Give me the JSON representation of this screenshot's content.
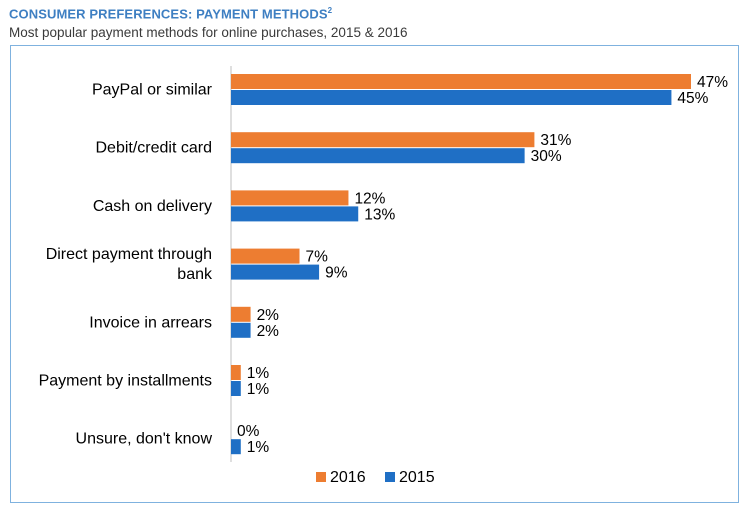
{
  "header": {
    "title": "CONSUMER PREFERENCES: PAYMENT METHODS",
    "title_sup": "2",
    "subtitle": "Most popular payment methods for online purchases, 2015 & 2016"
  },
  "colors": {
    "s2016": "#ed7d31",
    "s2015": "#1f6fc5"
  },
  "chart_data": {
    "type": "bar",
    "orientation": "horizontal",
    "title": "CONSUMER PREFERENCES: PAYMENT METHODS",
    "subtitle": "Most popular payment methods for online purchases, 2015 & 2016",
    "categories": [
      [
        "PayPal or similar"
      ],
      [
        "Debit/credit card"
      ],
      [
        "Cash on delivery"
      ],
      [
        "Direct payment through",
        "bank"
      ],
      [
        "Invoice in arrears"
      ],
      [
        "Payment by installments"
      ],
      [
        "Unsure, don't know"
      ]
    ],
    "series": [
      {
        "name": "2016",
        "values": [
          47,
          31,
          12,
          7,
          2,
          1,
          0
        ],
        "labels": [
          "47%",
          "31%",
          "12%",
          "7%",
          "2%",
          "1%",
          "0%"
        ]
      },
      {
        "name": "2015",
        "values": [
          45,
          30,
          13,
          9,
          2,
          1,
          1
        ],
        "labels": [
          "45%",
          "30%",
          "13%",
          "9%",
          "2%",
          "1%",
          "1%"
        ]
      }
    ],
    "xlim": [
      0,
      47
    ],
    "unit": "%",
    "legend_position": "bottom",
    "grid": false
  }
}
